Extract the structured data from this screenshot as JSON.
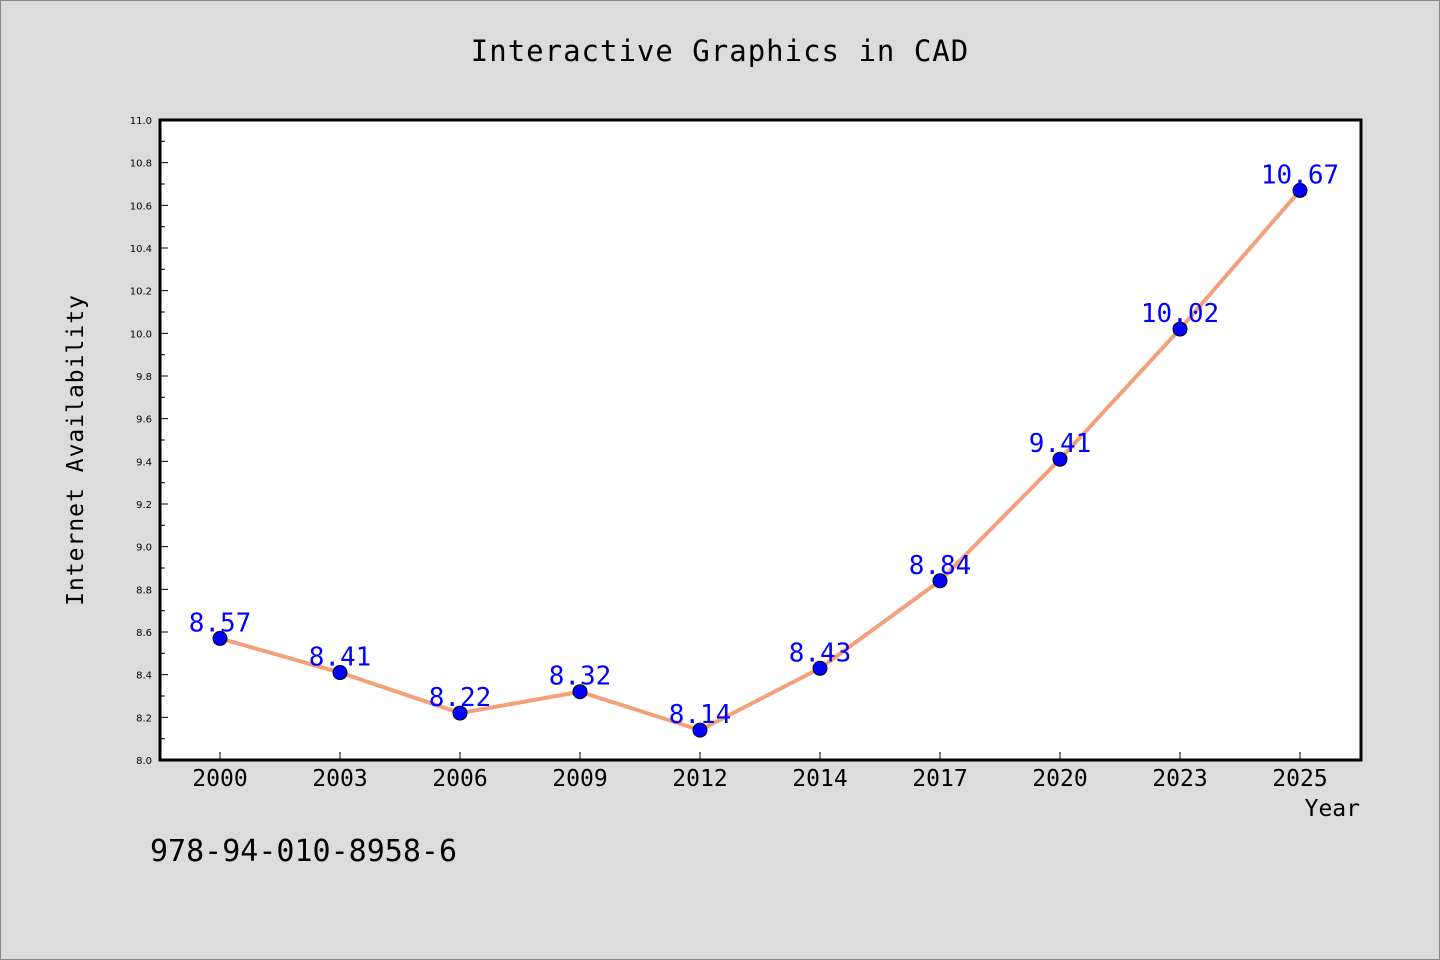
{
  "chart_data": {
    "type": "line",
    "title": "Interactive Graphics in CAD",
    "xlabel": "Year",
    "ylabel": "Internet Availability",
    "categories": [
      "2000",
      "2003",
      "2006",
      "2009",
      "2012",
      "2014",
      "2017",
      "2020",
      "2023",
      "2025"
    ],
    "series": [
      {
        "values": [
          8.57,
          8.41,
          8.22,
          8.32,
          8.14,
          8.43,
          8.84,
          9.41,
          10.02,
          10.67
        ],
        "data_labels": [
          "8.57",
          "8.41",
          "8.22",
          "8.32",
          "8.14",
          "8.43",
          "8.84",
          "9.41",
          "10.02",
          "10.67"
        ],
        "line_color": "#f4a07a",
        "marker_color": "#0000ff"
      }
    ],
    "ylim": [
      8.0,
      11.0
    ],
    "yticks": [
      "8.0",
      "8.2",
      "8.4",
      "8.6",
      "8.8",
      "9.0",
      "9.2",
      "9.4",
      "9.6",
      "9.8",
      "10.0",
      "10.2",
      "10.4",
      "10.6",
      "10.8",
      "11.0"
    ],
    "grid": false,
    "legend": "none"
  },
  "footnote": "978-94-010-8958-6"
}
